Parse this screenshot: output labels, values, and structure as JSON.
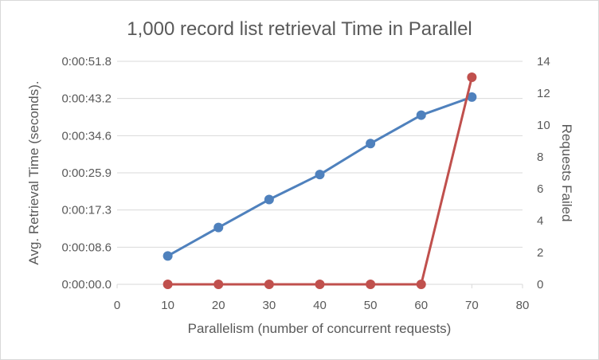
{
  "chart_data": {
    "type": "line",
    "title": "1,000 record list retrieval Time in Parallel",
    "xlabel": "Parallelism (number of concurrent requests)",
    "ylabel": "Avg. Retrieval Time (seconds).",
    "y2label": "Requests Failed",
    "xlim": [
      0,
      80
    ],
    "x_ticks": [
      "0",
      "10",
      "20",
      "30",
      "40",
      "50",
      "60",
      "70",
      "80"
    ],
    "ylim_seconds": [
      0,
      51.8
    ],
    "y_ticks": [
      "0:00:00.0",
      "0:00:08.6",
      "0:00:17.3",
      "0:00:25.9",
      "0:00:34.6",
      "0:00:43.2",
      "0:00:51.8"
    ],
    "y2lim": [
      0,
      14
    ],
    "y2_ticks": [
      "0",
      "2",
      "4",
      "6",
      "8",
      "10",
      "12",
      "14"
    ],
    "grid": "horizontal",
    "legend": "none",
    "x": [
      10,
      20,
      30,
      40,
      50,
      60,
      70
    ],
    "series": [
      {
        "axis": "left",
        "color": "#4f81bd",
        "values": [
          6.6,
          13.2,
          19.7,
          25.5,
          32.7,
          39.3,
          43.5
        ]
      },
      {
        "axis": "right",
        "color": "#c0504d",
        "values": [
          0,
          0,
          0,
          0,
          0,
          0,
          13
        ]
      }
    ]
  }
}
